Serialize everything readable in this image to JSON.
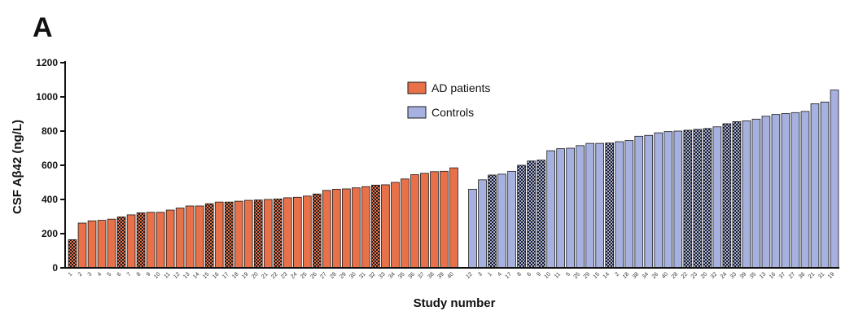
{
  "panel_label": "A",
  "colors": {
    "ad": "#E8714A",
    "controls": "#A6B1E0",
    "bar_stroke": "#1a1a1a",
    "axis": "#111111"
  },
  "chart_data": {
    "type": "bar",
    "title": "",
    "ylabel": "CSF Aβ42 (ng/L)",
    "xlabel": "Study number",
    "ylim": [
      0,
      1200
    ],
    "yticks": [
      0,
      200,
      400,
      600,
      800,
      1000,
      1200
    ],
    "legend": {
      "position": "top-center",
      "entries": [
        "AD patients",
        "Controls"
      ]
    },
    "grid": false,
    "series": [
      {
        "name": "AD patients",
        "color_key": "ad",
        "categories": [
          "1",
          "2",
          "3",
          "4",
          "5",
          "6",
          "7",
          "8",
          "9",
          "10",
          "11",
          "12",
          "13",
          "14",
          "15",
          "16",
          "17",
          "18",
          "19",
          "20",
          "21",
          "22",
          "23",
          "24",
          "25",
          "26",
          "27",
          "28",
          "29",
          "30",
          "31",
          "32",
          "33",
          "34",
          "35",
          "36",
          "37",
          "38",
          "39",
          "40"
        ],
        "values": [
          165,
          262,
          275,
          278,
          285,
          298,
          310,
          322,
          325,
          325,
          338,
          350,
          362,
          362,
          375,
          385,
          385,
          390,
          395,
          397,
          400,
          403,
          410,
          413,
          420,
          432,
          453,
          460,
          462,
          468,
          475,
          484,
          486,
          500,
          520,
          545,
          553,
          563,
          565,
          585
        ],
        "hatched": [
          true,
          false,
          false,
          false,
          false,
          true,
          false,
          true,
          false,
          false,
          false,
          false,
          false,
          false,
          true,
          false,
          true,
          false,
          false,
          true,
          false,
          true,
          false,
          false,
          false,
          true,
          false,
          false,
          false,
          false,
          false,
          true,
          false,
          false,
          false,
          false,
          false,
          false,
          false,
          false
        ]
      },
      {
        "name": "Controls",
        "color_key": "controls",
        "categories": [
          "12",
          "3",
          "1",
          "4",
          "17",
          "8",
          "6",
          "9",
          "10",
          "11",
          "5",
          "25",
          "29",
          "15",
          "14",
          "2",
          "18",
          "38",
          "34",
          "26",
          "40",
          "28",
          "22",
          "23",
          "20",
          "32",
          "24",
          "33",
          "39",
          "35",
          "13",
          "16",
          "37",
          "27",
          "36",
          "21",
          "31",
          "19"
        ],
        "values": [
          460,
          515,
          543,
          548,
          565,
          600,
          625,
          630,
          685,
          697,
          700,
          715,
          728,
          728,
          730,
          738,
          745,
          770,
          775,
          790,
          797,
          800,
          805,
          810,
          815,
          825,
          843,
          855,
          860,
          870,
          887,
          897,
          903,
          908,
          915,
          960,
          970,
          1040
        ],
        "hatched": [
          false,
          false,
          true,
          false,
          false,
          true,
          true,
          true,
          false,
          false,
          false,
          false,
          false,
          false,
          true,
          false,
          false,
          false,
          false,
          false,
          false,
          false,
          true,
          true,
          true,
          false,
          true,
          true,
          false,
          false,
          false,
          false,
          false,
          false,
          false,
          false,
          false,
          false
        ]
      }
    ]
  }
}
